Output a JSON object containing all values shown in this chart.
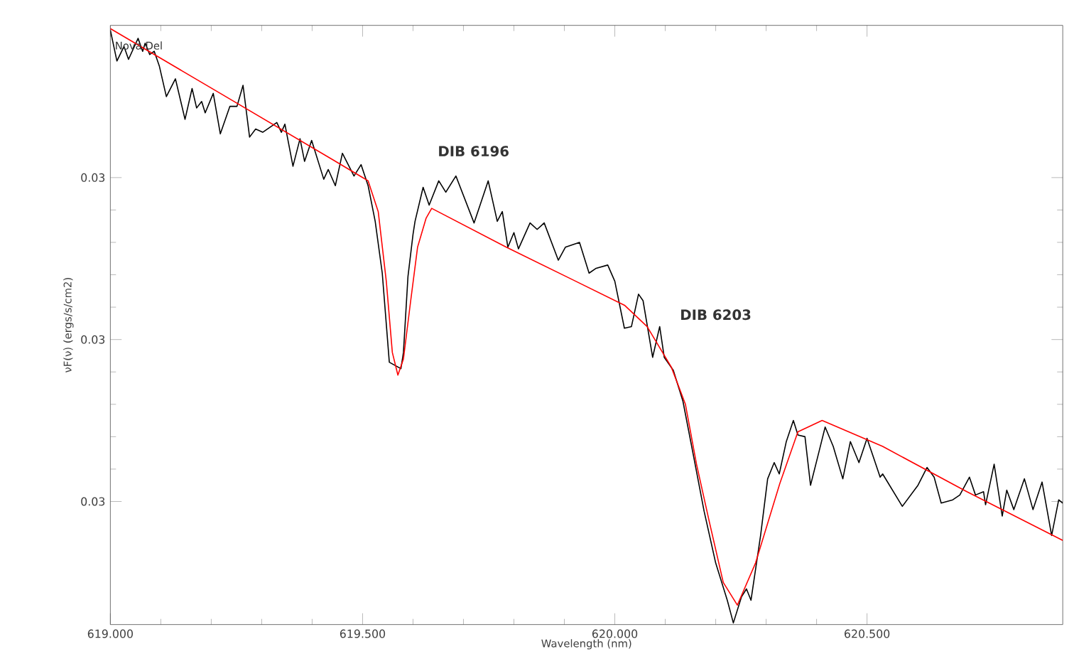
{
  "chart_data": {
    "type": "line",
    "xlabel": "Wavelength (nm)",
    "ylabel": "νF(ν) (ergs/s/cm2)",
    "annotations": [
      "Nova Del",
      "DIB 6196",
      "DIB 6203"
    ],
    "xlim": [
      619.0,
      620.888
    ],
    "ylim": [
      0.02824,
      0.03194
    ],
    "xticks": [
      {
        "value": 619.0,
        "label": "619.000"
      },
      {
        "value": 619.5,
        "label": "619.500"
      },
      {
        "value": 620.0,
        "label": "620.000"
      },
      {
        "value": 620.5,
        "label": "620.500"
      }
    ],
    "yticks": [
      {
        "value": 0.029,
        "label": "0.03"
      },
      {
        "value": 0.03,
        "label": "0.03"
      },
      {
        "value": 0.031,
        "label": "0.03"
      }
    ],
    "grid": false,
    "marker": "none",
    "line_style": "solid",
    "series": [
      {
        "color": "#000000",
        "x": [
          619.0,
          619.013,
          619.027,
          619.036,
          619.055,
          619.064,
          619.069,
          619.078,
          619.087,
          619.097,
          619.111,
          619.129,
          619.148,
          619.162,
          619.171,
          619.181,
          619.188,
          619.204,
          619.218,
          619.237,
          619.251,
          619.263,
          619.276,
          619.288,
          619.302,
          619.33,
          619.339,
          619.346,
          619.362,
          619.376,
          619.385,
          619.399,
          619.423,
          619.432,
          619.446,
          619.46,
          619.483,
          619.497,
          619.511,
          619.525,
          619.539,
          619.553,
          619.576,
          619.581,
          619.59,
          619.6,
          619.604,
          619.62,
          619.632,
          619.651,
          619.665,
          619.685,
          619.721,
          619.749,
          619.767,
          619.777,
          619.788,
          619.8,
          619.809,
          619.832,
          619.846,
          619.86,
          619.888,
          619.902,
          619.93,
          619.949,
          619.963,
          619.986,
          620.0,
          620.019,
          620.033,
          620.047,
          620.056,
          620.075,
          620.089,
          620.098,
          620.116,
          620.135,
          620.158,
          620.177,
          620.2,
          620.223,
          620.235,
          620.251,
          620.261,
          620.27,
          620.289,
          620.303,
          620.316,
          620.326,
          620.34,
          620.354,
          620.363,
          620.377,
          620.388,
          620.405,
          620.417,
          620.433,
          620.452,
          620.467,
          620.484,
          620.5,
          620.512,
          620.526,
          620.531,
          620.57,
          620.601,
          620.619,
          620.633,
          620.647,
          620.67,
          620.684,
          620.703,
          620.715,
          620.731,
          620.735,
          620.752,
          620.768,
          620.777,
          620.791,
          620.812,
          620.829,
          620.847,
          620.866,
          620.88,
          620.888
        ],
        "values": [
          0.03191,
          0.03172,
          0.03181,
          0.03173,
          0.03186,
          0.03178,
          0.03183,
          0.03176,
          0.03178,
          0.03169,
          0.0315,
          0.03161,
          0.03136,
          0.03155,
          0.03143,
          0.03147,
          0.0314,
          0.03152,
          0.03127,
          0.03144,
          0.03144,
          0.03157,
          0.03125,
          0.0313,
          0.03128,
          0.03134,
          0.03128,
          0.03133,
          0.03107,
          0.03124,
          0.0311,
          0.03123,
          0.03099,
          0.03105,
          0.03095,
          0.03115,
          0.03101,
          0.03108,
          0.03095,
          0.03073,
          0.03041,
          0.02986,
          0.02982,
          0.02992,
          0.03039,
          0.03065,
          0.03073,
          0.03094,
          0.03083,
          0.03098,
          0.03091,
          0.03101,
          0.03072,
          0.03098,
          0.03073,
          0.03079,
          0.03057,
          0.03066,
          0.03056,
          0.03072,
          0.03068,
          0.03072,
          0.03049,
          0.03057,
          0.0306,
          0.03041,
          0.03044,
          0.03046,
          0.03036,
          0.03007,
          0.03008,
          0.03028,
          0.03024,
          0.02989,
          0.03008,
          0.02989,
          0.02981,
          0.02962,
          0.02925,
          0.02894,
          0.02862,
          0.02839,
          0.02825,
          0.02841,
          0.02846,
          0.02839,
          0.02879,
          0.02914,
          0.02924,
          0.02917,
          0.02937,
          0.0295,
          0.02941,
          0.0294,
          0.0291,
          0.02931,
          0.02946,
          0.02934,
          0.02914,
          0.02937,
          0.02924,
          0.02939,
          0.02928,
          0.02915,
          0.02917,
          0.02897,
          0.0291,
          0.02921,
          0.02915,
          0.02899,
          0.02901,
          0.02904,
          0.02915,
          0.02904,
          0.02906,
          0.02898,
          0.02923,
          0.02891,
          0.02907,
          0.02895,
          0.02914,
          0.02895,
          0.02912,
          0.02879,
          0.02901,
          0.02899
        ]
      },
      {
        "color": "#ff0000",
        "x": [
          619.0,
          619.218,
          619.441,
          619.511,
          619.531,
          619.547,
          619.559,
          619.57,
          619.581,
          619.595,
          619.609,
          619.626,
          619.637,
          619.785,
          619.916,
          620.02,
          620.064,
          620.112,
          620.14,
          620.162,
          620.187,
          620.215,
          620.243,
          620.279,
          620.327,
          620.363,
          620.411,
          620.531,
          620.698,
          620.888
        ],
        "values": [
          0.03192,
          0.03152,
          0.03111,
          0.03098,
          0.03079,
          0.03036,
          0.02992,
          0.02978,
          0.02988,
          0.03023,
          0.03057,
          0.03075,
          0.03081,
          0.03057,
          0.03037,
          0.03021,
          0.03008,
          0.02983,
          0.0296,
          0.02923,
          0.02888,
          0.0285,
          0.02836,
          0.02862,
          0.02911,
          0.02943,
          0.0295,
          0.02934,
          0.02906,
          0.02876
        ]
      }
    ]
  }
}
